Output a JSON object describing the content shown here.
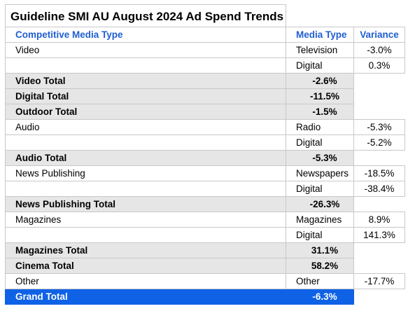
{
  "title": "Guideline SMI AU August 2024 Ad Spend Trends",
  "headers": {
    "col1": "Competitive Media Type",
    "col2": "Media Type",
    "col3": "Variance"
  },
  "rows": {
    "video_tv": {
      "type": "Video",
      "media": "Television",
      "variance": "-3.0%"
    },
    "video_digital": {
      "type": "",
      "media": "Digital",
      "variance": "0.3%"
    },
    "video_total": {
      "label": "Video Total",
      "value": "-2.6%"
    },
    "digital_total": {
      "label": "Digital Total",
      "value": "-11.5%"
    },
    "outdoor_total": {
      "label": "Outdoor Total",
      "value": "-1.5%"
    },
    "audio_radio": {
      "type": "Audio",
      "media": "Radio",
      "variance": "-5.3%"
    },
    "audio_digital": {
      "type": "",
      "media": "Digital",
      "variance": "-5.2%"
    },
    "audio_total": {
      "label": "Audio Total",
      "value": "-5.3%"
    },
    "news_papers": {
      "type": "News Publishing",
      "media": "Newspapers",
      "variance": "-18.5%"
    },
    "news_digital": {
      "type": "",
      "media": "Digital",
      "variance": "-38.4%"
    },
    "news_total": {
      "label": "News Publishing Total",
      "value": "-26.3%"
    },
    "mag_mag": {
      "type": "Magazines",
      "media": "Magazines",
      "variance": "8.9%"
    },
    "mag_digital": {
      "type": "",
      "media": "Digital",
      "variance": "141.3%"
    },
    "mag_total": {
      "label": "Magazines Total",
      "value": "31.1%"
    },
    "cinema_total": {
      "label": "Cinema Total",
      "value": "58.2%"
    },
    "other": {
      "type": "Other",
      "media": "Other",
      "variance": "-17.7%"
    },
    "grand_total": {
      "label": "Grand Total",
      "value": "-6.3%"
    }
  },
  "colors": {
    "header_text": "#1f5fd1",
    "total_bg": "#e6e6e6",
    "grand_total_bg": "#0f62e6"
  }
}
